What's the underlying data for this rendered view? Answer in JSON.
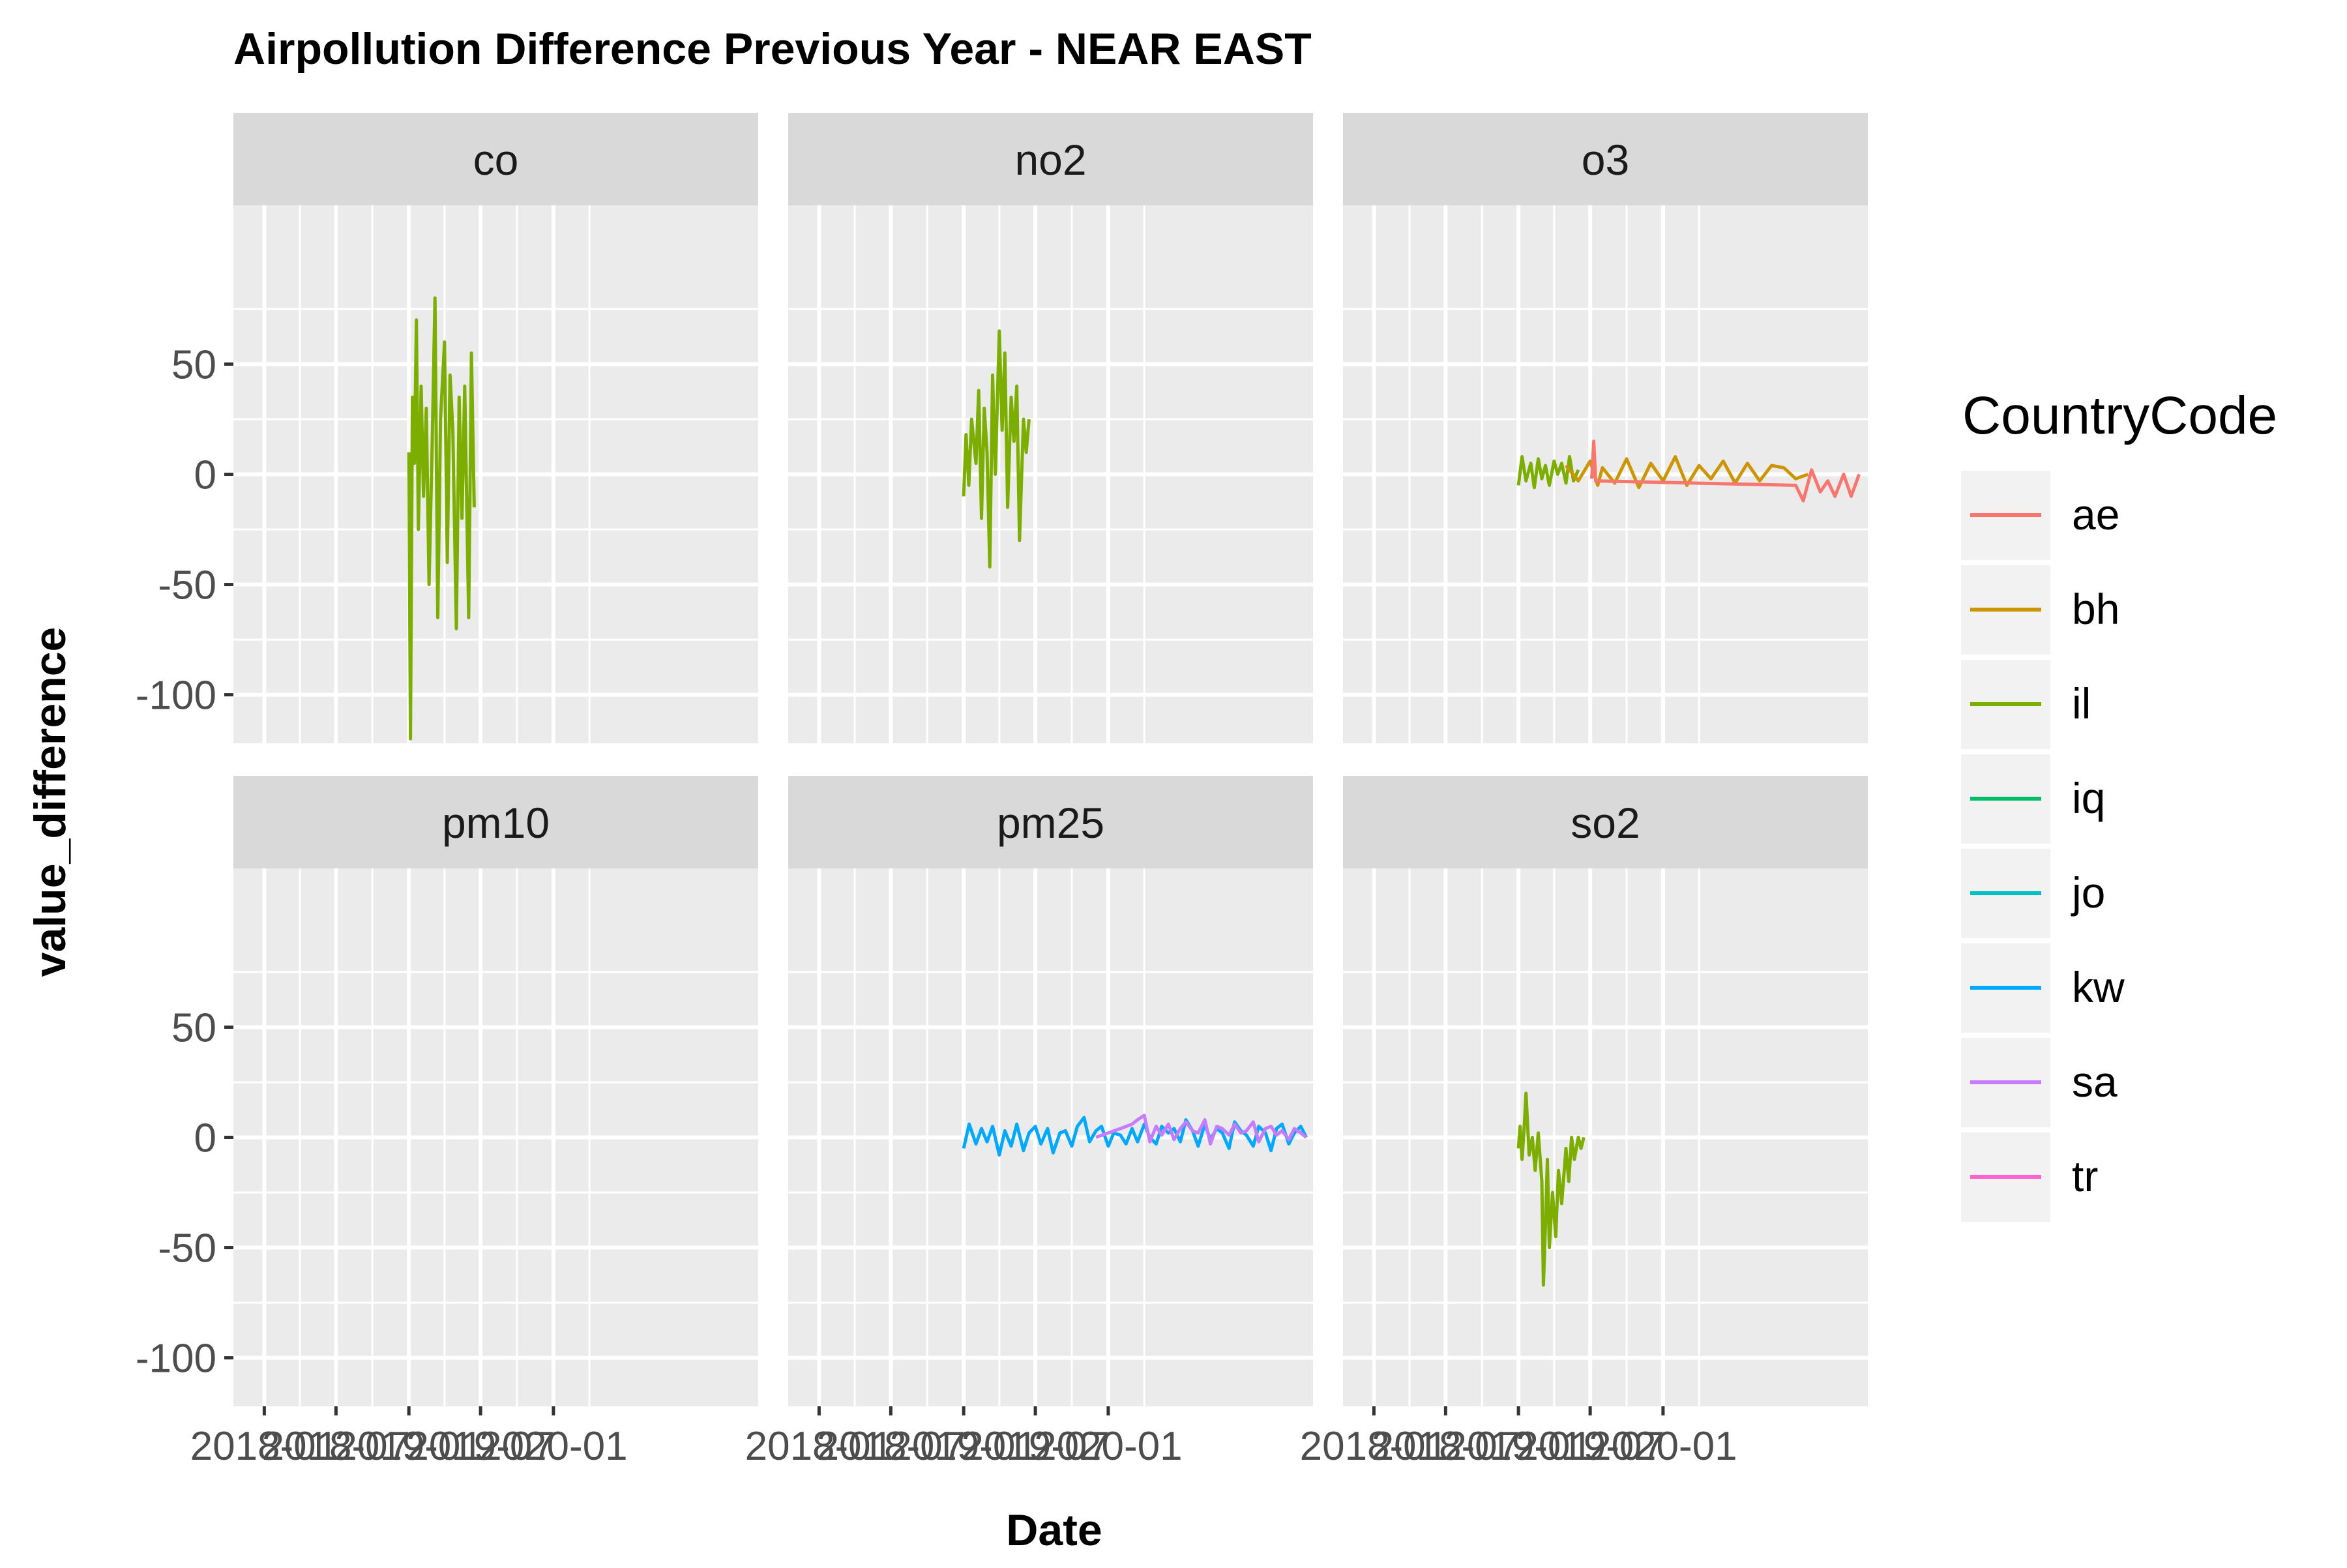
{
  "chart_data": {
    "type": "line",
    "title": "Airpollution Difference Previous Year - NEAR EAST",
    "xlabel": "Date",
    "ylabel": "value_difference",
    "ylim": [
      -122,
      122
    ],
    "y_ticks": [
      50,
      0,
      -50,
      -100
    ],
    "y_tick_labels": [
      "50",
      "0",
      "-50",
      "-100"
    ],
    "x_tick_labels": [
      "2018-01",
      "2018-07",
      "2019-01",
      "2019-07",
      "2020-01"
    ],
    "grid": true,
    "legend": {
      "title": "CountryCode",
      "position": "right",
      "entries": [
        {
          "key": "ae",
          "color": "#F8766D"
        },
        {
          "key": "bh",
          "color": "#CD9600"
        },
        {
          "key": "il",
          "color": "#7CAE00"
        },
        {
          "key": "iq",
          "color": "#00BE67"
        },
        {
          "key": "jo",
          "color": "#00BFC4"
        },
        {
          "key": "kw",
          "color": "#00A9FF"
        },
        {
          "key": "sa",
          "color": "#C77CFF"
        },
        {
          "key": "tr",
          "color": "#FF61CC"
        }
      ]
    },
    "panels": [
      {
        "name": "co",
        "series": [
          {
            "country": "il",
            "x": [
              "2019-01-01",
              "2019-01-05",
              "2019-01-10",
              "2019-01-15",
              "2019-01-20",
              "2019-01-25",
              "2019-02-01",
              "2019-02-07",
              "2019-02-14",
              "2019-02-21",
              "2019-03-01",
              "2019-03-08",
              "2019-03-15",
              "2019-03-22",
              "2019-04-01",
              "2019-04-08",
              "2019-04-15",
              "2019-04-22",
              "2019-05-01",
              "2019-05-08",
              "2019-05-15",
              "2019-05-22",
              "2019-06-01",
              "2019-06-08",
              "2019-06-15"
            ],
            "y": [
              10,
              -120,
              35,
              5,
              70,
              -25,
              40,
              -10,
              30,
              -50,
              15,
              80,
              -65,
              25,
              60,
              -40,
              45,
              20,
              -70,
              35,
              -20,
              40,
              -65,
              55,
              -15
            ]
          }
        ]
      },
      {
        "name": "no2",
        "series": [
          {
            "country": "il",
            "x": [
              "2019-01-01",
              "2019-01-07",
              "2019-01-14",
              "2019-01-21",
              "2019-02-01",
              "2019-02-08",
              "2019-02-15",
              "2019-02-22",
              "2019-03-01",
              "2019-03-08",
              "2019-03-15",
              "2019-03-22",
              "2019-04-01",
              "2019-04-08",
              "2019-04-15",
              "2019-04-22",
              "2019-05-01",
              "2019-05-08",
              "2019-05-15",
              "2019-05-22",
              "2019-06-01",
              "2019-06-08",
              "2019-06-15"
            ],
            "y": [
              -10,
              18,
              -5,
              25,
              5,
              38,
              -20,
              30,
              10,
              -42,
              45,
              0,
              65,
              20,
              55,
              -15,
              35,
              15,
              40,
              -30,
              25,
              10,
              25
            ]
          }
        ]
      },
      {
        "name": "o3",
        "series": [
          {
            "country": "il",
            "x": [
              "2019-01-01",
              "2019-01-10",
              "2019-01-20",
              "2019-02-01",
              "2019-02-10",
              "2019-02-20",
              "2019-03-01",
              "2019-03-10",
              "2019-03-20",
              "2019-04-01",
              "2019-04-10",
              "2019-04-20",
              "2019-05-01",
              "2019-05-10",
              "2019-05-20",
              "2019-06-01"
            ],
            "y": [
              -5,
              8,
              -3,
              5,
              -6,
              7,
              -2,
              4,
              -5,
              6,
              0,
              5,
              -4,
              8,
              -3,
              2
            ]
          },
          {
            "country": "bh",
            "x": [
              "2019-05-01",
              "2019-06-01",
              "2019-07-01",
              "2019-07-20",
              "2019-08-01",
              "2019-09-01",
              "2019-10-01",
              "2019-11-01",
              "2019-12-01",
              "2020-01-01",
              "2020-02-01",
              "2020-03-01",
              "2020-04-01",
              "2020-05-01",
              "2020-06-01",
              "2020-07-01",
              "2020-08-01",
              "2020-09-01",
              "2020-10-01",
              "2020-11-01",
              "2020-12-01",
              "2021-01-01"
            ],
            "y": [
              4,
              -3,
              6,
              -5,
              3,
              -4,
              7,
              -6,
              5,
              -3,
              8,
              -5,
              4,
              -2,
              6,
              -4,
              5,
              -3,
              4,
              3,
              -2,
              0
            ]
          },
          {
            "country": "ae",
            "x": [
              "2019-07-05",
              "2019-07-10",
              "2019-07-15",
              "2020-12-01",
              "2020-12-20",
              "2021-01-10",
              "2021-02-01",
              "2021-02-20",
              "2021-03-10",
              "2021-04-01",
              "2021-04-20",
              "2021-05-10"
            ],
            "y": [
              -2,
              15,
              -3,
              -5,
              -12,
              2,
              -8,
              -3,
              -10,
              0,
              -10,
              0
            ]
          }
        ]
      },
      {
        "name": "pm10",
        "series": []
      },
      {
        "name": "pm25",
        "series": [
          {
            "country": "kw",
            "x": [
              "2019-01-01",
              "2019-01-15",
              "2019-02-01",
              "2019-02-15",
              "2019-03-01",
              "2019-03-15",
              "2019-04-01",
              "2019-04-15",
              "2019-05-01",
              "2019-05-15",
              "2019-06-01",
              "2019-06-15",
              "2019-07-01",
              "2019-07-15",
              "2019-08-01",
              "2019-08-15",
              "2019-09-01",
              "2019-09-15",
              "2019-10-01",
              "2019-10-15",
              "2019-11-01",
              "2019-11-15",
              "2019-12-01",
              "2019-12-15",
              "2020-01-01",
              "2020-01-15",
              "2020-02-01",
              "2020-02-15",
              "2020-03-01",
              "2020-03-15",
              "2020-04-01",
              "2020-04-15",
              "2020-05-01",
              "2020-05-15",
              "2020-06-01",
              "2020-06-15",
              "2020-07-01",
              "2020-07-15",
              "2020-08-01",
              "2020-08-15",
              "2020-09-01",
              "2020-09-15",
              "2020-10-01",
              "2020-10-15",
              "2020-11-01",
              "2020-11-15",
              "2020-12-01",
              "2020-12-15",
              "2021-01-01",
              "2021-01-15",
              "2021-02-01",
              "2021-02-15",
              "2021-03-01",
              "2021-03-15",
              "2021-04-01",
              "2021-04-15",
              "2021-05-01",
              "2021-05-15"
            ],
            "y": [
              -5,
              6,
              -3,
              4,
              -2,
              5,
              -8,
              3,
              -4,
              6,
              -6,
              2,
              5,
              -3,
              4,
              -7,
              2,
              3,
              -4,
              5,
              9,
              -2,
              3,
              5,
              -4,
              2,
              1,
              -3,
              4,
              -2,
              6,
              0,
              -3,
              5,
              2,
              4,
              -2,
              8,
              3,
              -4,
              6,
              -1,
              4,
              2,
              -5,
              7,
              3,
              1,
              -4,
              5,
              2,
              -6,
              4,
              6,
              -3,
              2,
              5,
              0
            ]
          },
          {
            "country": "sa",
            "x": [
              "2019-12-01",
              "2020-01-01",
              "2020-02-01",
              "2020-03-01",
              "2020-03-15",
              "2020-04-01",
              "2020-04-15",
              "2020-05-01",
              "2020-05-15",
              "2020-06-01",
              "2020-06-15",
              "2020-07-01",
              "2020-07-15",
              "2020-08-01",
              "2020-08-15",
              "2020-09-01",
              "2020-09-15",
              "2020-10-01",
              "2020-10-15",
              "2020-11-01",
              "2020-11-15",
              "2020-12-01",
              "2020-12-15",
              "2021-01-01",
              "2021-01-15",
              "2021-02-01",
              "2021-02-15",
              "2021-03-01",
              "2021-03-15",
              "2021-04-01",
              "2021-04-15",
              "2021-05-01",
              "2021-05-15"
            ],
            "y": [
              0,
              2,
              4,
              6,
              8,
              10,
              -2,
              5,
              1,
              6,
              -1,
              4,
              7,
              3,
              2,
              8,
              -3,
              5,
              4,
              1,
              6,
              2,
              3,
              7,
              -2,
              4,
              5,
              1,
              3,
              -1,
              4,
              2,
              0
            ]
          }
        ]
      },
      {
        "name": "so2",
        "series": [
          {
            "country": "il",
            "x": [
              "2019-01-01",
              "2019-01-05",
              "2019-01-10",
              "2019-01-15",
              "2019-01-20",
              "2019-01-28",
              "2019-02-05",
              "2019-02-12",
              "2019-02-20",
              "2019-03-01",
              "2019-03-05",
              "2019-03-10",
              "2019-03-15",
              "2019-03-20",
              "2019-03-28",
              "2019-04-05",
              "2019-04-12",
              "2019-04-20",
              "2019-05-01",
              "2019-05-08",
              "2019-05-15",
              "2019-05-22",
              "2019-06-01",
              "2019-06-08",
              "2019-06-15"
            ],
            "y": [
              -5,
              5,
              -10,
              3,
              20,
              -8,
              0,
              -15,
              2,
              -20,
              -67,
              -40,
              -10,
              -50,
              -25,
              -45,
              -15,
              -30,
              -5,
              -20,
              0,
              -10,
              0,
              -5,
              0
            ]
          }
        ]
      }
    ]
  }
}
